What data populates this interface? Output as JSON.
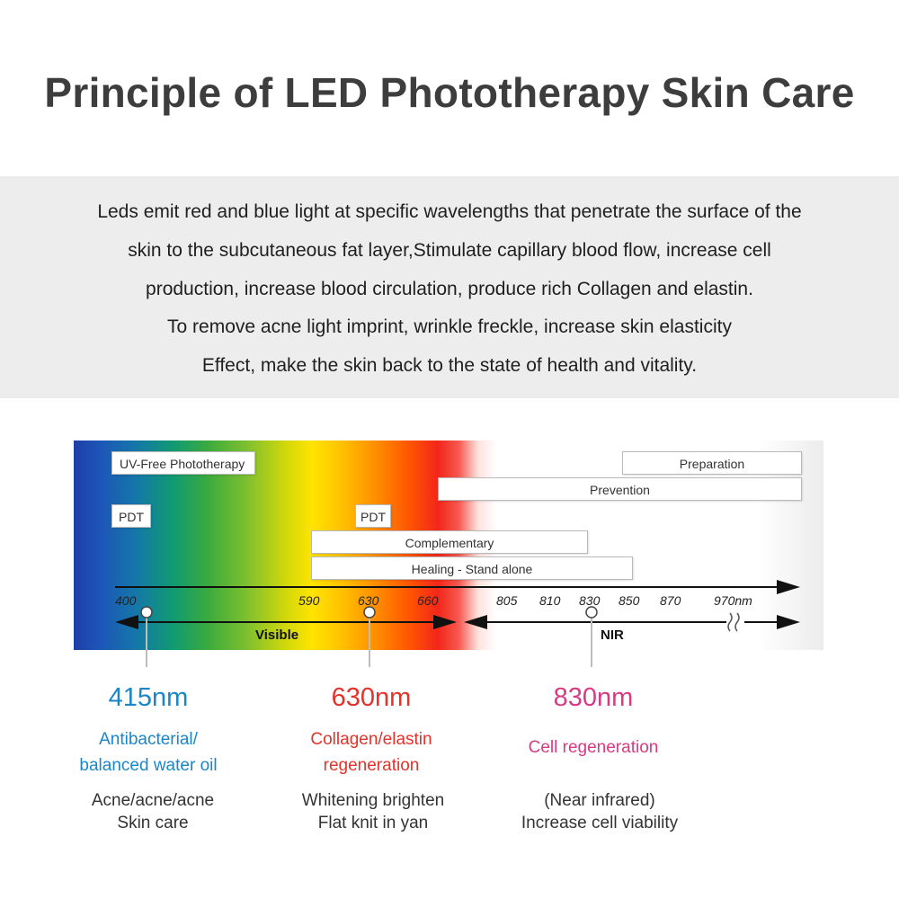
{
  "title": "Principle of LED Phototherapy Skin Care",
  "intro_lines": [
    "Leds emit red and blue light at specific wavelengths that penetrate the surface of the",
    "skin to the subcutaneous fat layer,Stimulate capillary blood flow, increase cell",
    "production, increase blood circulation, produce rich Collagen and elastin.",
    "To remove acne light imprint, wrinkle freckle, increase skin elasticity",
    "Effect, make the skin back to the state of health and vitality."
  ],
  "spectrum": {
    "tags": {
      "uv_free": "UV-Free Phototherapy",
      "preparation": "Preparation",
      "prevention": "Prevention",
      "pdt_1": "PDT",
      "pdt_2": "PDT",
      "complementary": "Complementary",
      "healing": "Healing - Stand alone"
    },
    "ticks": [
      "400",
      "590",
      "630",
      "660",
      "805",
      "810",
      "830",
      "850",
      "870",
      "970nm"
    ],
    "visible_label": "Visible",
    "nir_label": "NIR"
  },
  "wavelengths": [
    {
      "nm": "415nm",
      "color": "#1a86c8",
      "desc": [
        "Antibacterial/",
        "balanced water oil"
      ],
      "effect": [
        "Acne/acne/acne",
        "Skin care"
      ]
    },
    {
      "nm": "630nm",
      "color": "#e2332b",
      "desc": [
        "Collagen/elastin",
        "regeneration"
      ],
      "effect": [
        "Whitening brighten",
        "Flat knit in yan"
      ]
    },
    {
      "nm": "830nm",
      "color": "#d63b83",
      "desc": [
        "Cell regeneration"
      ],
      "effect": [
        "(Near infrared)",
        "Increase cell viability"
      ]
    }
  ]
}
